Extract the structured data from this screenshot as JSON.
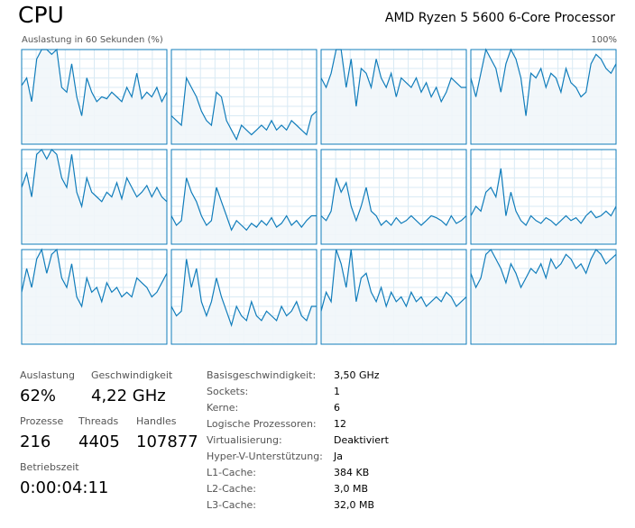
{
  "header": {
    "title": "CPU",
    "processor": "AMD Ryzen 5 5600 6-Core Processor"
  },
  "graphs": {
    "label": "Auslastung in 60 Sekunden (%)",
    "max_label": "100%",
    "ylim": [
      0,
      100
    ],
    "cores": [
      {
        "values": [
          62,
          70,
          45,
          90,
          100,
          100,
          95,
          100,
          60,
          55,
          85,
          50,
          30,
          70,
          55,
          45,
          50,
          48,
          55,
          50,
          45,
          60,
          50,
          75,
          48,
          55,
          50,
          60,
          45,
          55
        ]
      },
      {
        "values": [
          30,
          25,
          20,
          70,
          60,
          50,
          35,
          25,
          20,
          55,
          50,
          25,
          15,
          5,
          20,
          15,
          10,
          15,
          20,
          15,
          25,
          15,
          20,
          15,
          25,
          20,
          15,
          10,
          30,
          35
        ]
      },
      {
        "values": [
          70,
          60,
          75,
          100,
          100,
          60,
          90,
          40,
          80,
          75,
          60,
          90,
          70,
          60,
          75,
          50,
          70,
          65,
          60,
          70,
          55,
          65,
          50,
          60,
          45,
          55,
          70,
          65,
          60,
          60
        ]
      },
      {
        "values": [
          70,
          50,
          75,
          100,
          90,
          80,
          55,
          85,
          100,
          90,
          70,
          30,
          75,
          70,
          80,
          60,
          75,
          70,
          55,
          80,
          65,
          60,
          50,
          55,
          85,
          95,
          90,
          80,
          75,
          85
        ]
      },
      {
        "values": [
          60,
          75,
          50,
          95,
          100,
          90,
          100,
          95,
          70,
          60,
          95,
          55,
          40,
          70,
          55,
          50,
          45,
          55,
          50,
          65,
          48,
          70,
          60,
          50,
          55,
          62,
          50,
          60,
          50,
          45
        ]
      },
      {
        "values": [
          30,
          20,
          25,
          70,
          55,
          45,
          30,
          20,
          25,
          60,
          45,
          30,
          15,
          25,
          20,
          15,
          22,
          18,
          25,
          20,
          28,
          18,
          22,
          30,
          20,
          25,
          18,
          25,
          30,
          30
        ]
      },
      {
        "values": [
          30,
          25,
          35,
          70,
          55,
          65,
          40,
          25,
          40,
          60,
          35,
          30,
          20,
          25,
          20,
          28,
          22,
          25,
          30,
          25,
          20,
          25,
          30,
          28,
          25,
          20,
          30,
          22,
          25,
          30
        ]
      },
      {
        "values": [
          30,
          40,
          35,
          55,
          60,
          50,
          80,
          30,
          55,
          35,
          25,
          20,
          30,
          25,
          22,
          28,
          25,
          20,
          25,
          30,
          25,
          28,
          22,
          30,
          35,
          28,
          30,
          35,
          30,
          40
        ]
      },
      {
        "values": [
          55,
          80,
          60,
          90,
          100,
          75,
          95,
          100,
          70,
          60,
          85,
          50,
          40,
          70,
          55,
          60,
          45,
          65,
          55,
          60,
          50,
          55,
          50,
          70,
          65,
          60,
          50,
          55,
          65,
          75
        ]
      },
      {
        "values": [
          40,
          30,
          35,
          90,
          60,
          80,
          45,
          30,
          45,
          70,
          50,
          35,
          20,
          40,
          30,
          25,
          45,
          30,
          25,
          35,
          30,
          25,
          40,
          30,
          35,
          45,
          30,
          25,
          40,
          40
        ]
      },
      {
        "values": [
          35,
          55,
          45,
          100,
          85,
          60,
          100,
          45,
          70,
          75,
          55,
          45,
          60,
          40,
          55,
          45,
          50,
          40,
          55,
          45,
          50,
          40,
          45,
          50,
          45,
          55,
          50,
          40,
          45,
          50
        ]
      },
      {
        "values": [
          75,
          60,
          70,
          95,
          100,
          90,
          80,
          65,
          85,
          75,
          60,
          70,
          80,
          75,
          85,
          70,
          90,
          80,
          85,
          95,
          90,
          80,
          85,
          75,
          90,
          100,
          95,
          85,
          90,
          95
        ]
      }
    ]
  },
  "stats": [
    {
      "label": "Auslastung",
      "value": "62%"
    },
    {
      "label": "Geschwindigkeit",
      "value": "4,22 GHz"
    },
    {
      "label": "Prozesse",
      "value": "216"
    },
    {
      "label": "Threads",
      "value": "4405"
    },
    {
      "label": "Handles",
      "value": "107877"
    },
    {
      "label": "Betriebszeit",
      "value": "0:00:04:11"
    }
  ],
  "details": [
    [
      "Basisgeschwindigkeit:",
      "3,50 GHz"
    ],
    [
      "Sockets:",
      "1"
    ],
    [
      "Kerne:",
      "6"
    ],
    [
      "Logische Prozessoren:",
      "12"
    ],
    [
      "Virtualisierung:",
      "Deaktiviert"
    ],
    [
      "Hyper-V-Unterstützung:",
      "Ja"
    ],
    [
      "L1-Cache:",
      "384 KB"
    ],
    [
      "L2-Cache:",
      "3,0 MB"
    ],
    [
      "L3-Cache:",
      "32,0 MB"
    ]
  ]
}
